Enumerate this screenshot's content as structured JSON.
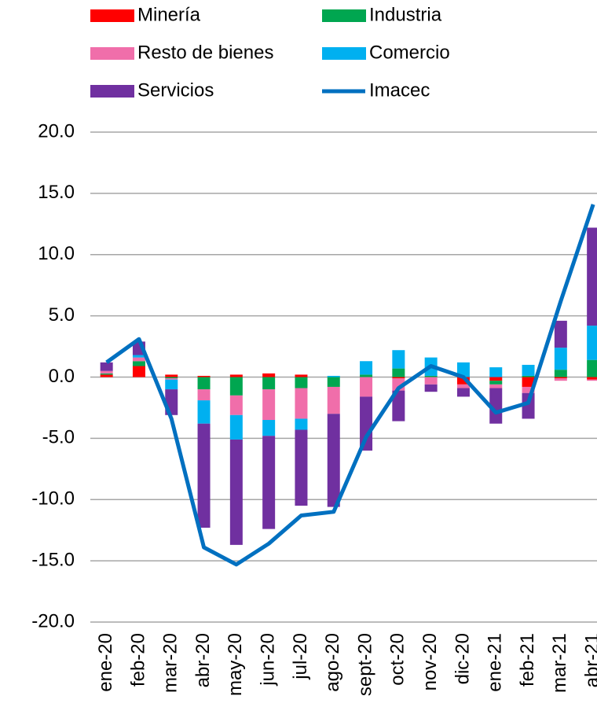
{
  "chart_data": {
    "type": "bar",
    "categories": [
      "ene-20",
      "feb-20",
      "mar-20",
      "abr-20",
      "may-20",
      "jun-20",
      "jul-20",
      "ago-20",
      "sept-20",
      "oct-20",
      "nov-20",
      "dic-20",
      "ene-21",
      "feb-21",
      "mar-21",
      "abr-21"
    ],
    "series": [
      {
        "name": "Minería",
        "color": "#ff0000",
        "values": [
          0.2,
          0.9,
          0.2,
          0.1,
          0.2,
          0.3,
          0.2,
          0.0,
          0.0,
          -0.1,
          0.0,
          -0.6,
          -0.3,
          -0.8,
          -0.1,
          -0.2
        ]
      },
      {
        "name": "Industria",
        "color": "#00a650",
        "values": [
          0.1,
          0.4,
          -0.1,
          -1.0,
          -1.5,
          -1.0,
          -0.9,
          -0.8,
          0.2,
          0.7,
          0.1,
          0.0,
          -0.3,
          0.1,
          0.6,
          1.4
        ]
      },
      {
        "name": "Resto de bienes",
        "color": "#f06eaa",
        "values": [
          0.2,
          0.3,
          -0.1,
          -0.9,
          -1.6,
          -2.5,
          -2.5,
          -2.2,
          -1.6,
          -1.0,
          -0.6,
          -0.3,
          -0.3,
          -0.5,
          -0.2,
          -0.1
        ]
      },
      {
        "name": "Comercio",
        "color": "#00b0f0",
        "values": [
          0.0,
          0.2,
          -0.8,
          -1.9,
          -2.0,
          -1.3,
          -0.9,
          0.1,
          1.1,
          1.5,
          1.5,
          1.2,
          0.8,
          0.9,
          1.8,
          2.8
        ]
      },
      {
        "name": "Servicios",
        "color": "#7030a0",
        "values": [
          0.7,
          1.1,
          -2.1,
          -8.5,
          -8.6,
          -7.6,
          -6.2,
          -7.6,
          -4.4,
          -2.5,
          -0.6,
          -0.7,
          -2.9,
          -2.1,
          2.2,
          8.0
        ]
      },
      {
        "name": "Imacec",
        "color": "#0070c0",
        "type": "line",
        "values": [
          1.2,
          3.1,
          -3.4,
          -13.9,
          -15.3,
          -13.6,
          -11.3,
          -11.0,
          -4.9,
          -0.9,
          0.9,
          0.0,
          -2.9,
          -2.1,
          6.2,
          14.1
        ]
      }
    ],
    "ylim": [
      -20,
      20
    ],
    "yticks": [
      {
        "value": -20,
        "label": "-20.0"
      },
      {
        "value": -15,
        "label": "-15.0"
      },
      {
        "value": -10,
        "label": "-10.0"
      },
      {
        "value": -5,
        "label": "-5.0"
      },
      {
        "value": 0,
        "label": "0.0"
      },
      {
        "value": 5,
        "label": "5.0"
      },
      {
        "value": 10,
        "label": "10.0"
      },
      {
        "value": 15,
        "label": "15.0"
      },
      {
        "value": 20,
        "label": "20.0"
      }
    ],
    "grid": true
  }
}
